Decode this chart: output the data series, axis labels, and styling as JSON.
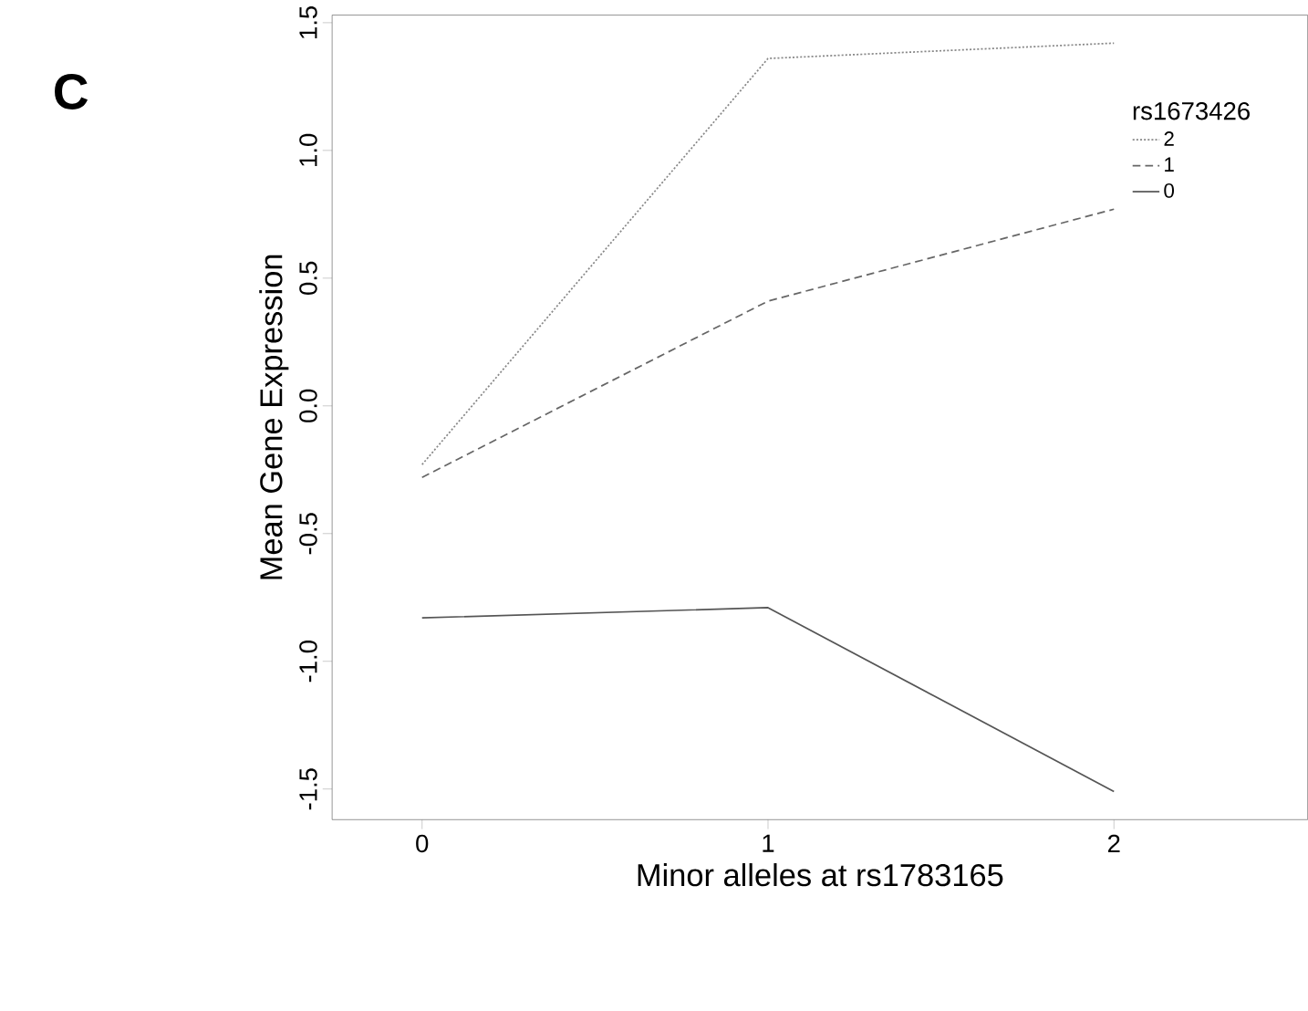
{
  "chart_data": {
    "type": "line",
    "annotations": [
      "C"
    ],
    "xlabel": "Minor alleles at rs1783165",
    "ylabel": "Mean Gene Expression",
    "legend_title": "rs1673426",
    "legend": "top right",
    "marker": "none",
    "categories": [
      "0",
      "1",
      "2"
    ],
    "series": [
      {
        "name": "2",
        "color": "#888888",
        "line_style": "dotted",
        "values": [
          -0.23,
          1.36,
          1.42
        ]
      },
      {
        "name": "1",
        "color": "#666666",
        "line_style": "dashed",
        "values": [
          -0.28,
          0.41,
          0.77
        ]
      },
      {
        "name": "0",
        "color": "#555555",
        "line_style": "solid",
        "values": [
          -0.83,
          -0.79,
          -1.51
        ]
      }
    ],
    "ylim": [
      -1.62,
      1.53
    ],
    "yticks": [
      -1.5,
      {
        "value": -1.0,
        "label": "-1.0"
      },
      -0.5,
      {
        "value": 0,
        "label": "0.0"
      },
      0.5,
      {
        "value": 1.0,
        "label": "1.0"
      },
      1.5
    ]
  }
}
